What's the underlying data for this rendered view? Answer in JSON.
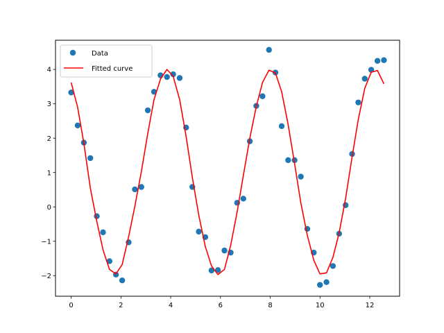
{
  "chart_data": {
    "type": "scatter",
    "title": "",
    "xlabel": "",
    "ylabel": "",
    "xlim": [
      -0.63,
      13.2
    ],
    "ylim": [
      -2.6,
      4.85
    ],
    "xticks": [
      0,
      2,
      4,
      6,
      8,
      10,
      12
    ],
    "yticks": [
      -2,
      -1,
      0,
      1,
      2,
      3,
      4
    ],
    "grid": false,
    "legend_position": "top-left",
    "series": [
      {
        "name": "Data",
        "kind": "scatter",
        "color": "#1f77b4",
        "x": [
          0.0,
          0.26,
          0.51,
          0.77,
          1.03,
          1.28,
          1.54,
          1.8,
          2.05,
          2.31,
          2.56,
          2.82,
          3.08,
          3.33,
          3.59,
          3.85,
          4.1,
          4.36,
          4.62,
          4.87,
          5.13,
          5.39,
          5.64,
          5.9,
          6.16,
          6.41,
          6.67,
          6.92,
          7.18,
          7.44,
          7.69,
          7.95,
          8.21,
          8.46,
          8.72,
          8.98,
          9.23,
          9.49,
          9.75,
          10.0,
          10.26,
          10.52,
          10.77,
          11.03,
          11.29,
          11.54,
          11.8,
          12.06,
          12.31,
          12.57
        ],
        "y": [
          3.33,
          2.37,
          1.87,
          1.42,
          -0.27,
          -0.74,
          -1.58,
          -1.97,
          -2.14,
          -1.03,
          0.51,
          0.58,
          2.81,
          3.35,
          3.83,
          3.78,
          3.86,
          3.75,
          2.31,
          0.58,
          -0.72,
          -0.88,
          -1.85,
          -1.84,
          -1.27,
          -1.33,
          0.12,
          0.24,
          1.91,
          2.94,
          3.22,
          4.57,
          3.91,
          2.35,
          1.36,
          1.36,
          0.88,
          -0.64,
          -1.33,
          -2.27,
          -2.19,
          -1.72,
          -0.78,
          0.05,
          1.54,
          3.04,
          3.73,
          3.99,
          4.25,
          4.27
        ]
      },
      {
        "name": "Fitted curve",
        "kind": "line",
        "color": "#ff0000",
        "x": [
          0.0,
          0.26,
          0.51,
          0.77,
          1.03,
          1.28,
          1.54,
          1.8,
          2.05,
          2.31,
          2.56,
          2.82,
          3.08,
          3.33,
          3.59,
          3.85,
          4.1,
          4.36,
          4.62,
          4.87,
          5.13,
          5.39,
          5.64,
          5.9,
          6.16,
          6.41,
          6.67,
          6.92,
          7.18,
          7.44,
          7.69,
          7.95,
          8.21,
          8.46,
          8.72,
          8.98,
          9.23,
          9.49,
          9.75,
          10.0,
          10.26,
          10.52,
          10.77,
          11.03,
          11.29,
          11.54,
          11.8,
          12.06,
          12.31,
          12.57
        ],
        "y": [
          3.62,
          2.9,
          1.85,
          0.55,
          -0.42,
          -1.25,
          -1.82,
          -1.95,
          -1.68,
          -0.87,
          0.02,
          1.02,
          2.15,
          3.12,
          3.72,
          4.0,
          3.8,
          3.12,
          2.05,
          0.85,
          -0.25,
          -1.15,
          -1.72,
          -1.97,
          -1.82,
          -1.12,
          -0.15,
          0.92,
          2.0,
          2.92,
          3.62,
          3.98,
          3.9,
          3.35,
          2.4,
          1.25,
          0.12,
          -0.82,
          -1.55,
          -1.95,
          -1.92,
          -1.47,
          -0.75,
          0.25,
          1.45,
          2.55,
          3.45,
          3.92,
          3.97,
          3.58
        ]
      }
    ]
  }
}
